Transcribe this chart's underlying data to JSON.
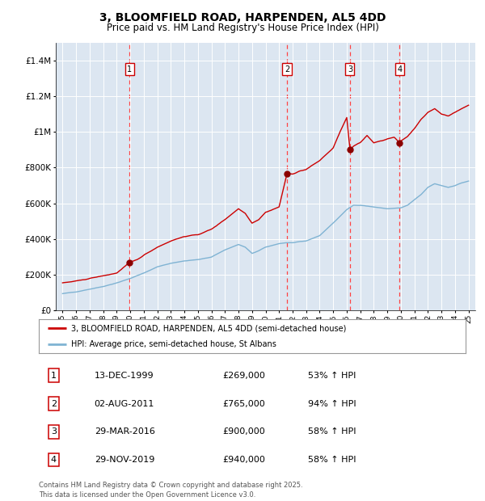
{
  "title": "3, BLOOMFIELD ROAD, HARPENDEN, AL5 4DD",
  "subtitle": "Price paid vs. HM Land Registry's House Price Index (HPI)",
  "title_fontsize": 10,
  "subtitle_fontsize": 8.5,
  "bg_color": "#dce6f1",
  "fig_bg_color": "#ffffff",
  "red_line_color": "#cc0000",
  "blue_line_color": "#7fb3d3",
  "sale_marker_color": "#8b0000",
  "vline_color": "#ff4444",
  "legend_line1": "3, BLOOMFIELD ROAD, HARPENDEN, AL5 4DD (semi-detached house)",
  "legend_line2": "HPI: Average price, semi-detached house, St Albans",
  "footer": "Contains HM Land Registry data © Crown copyright and database right 2025.\nThis data is licensed under the Open Government Licence v3.0.",
  "sales": [
    {
      "num": 1,
      "date_str": "13-DEC-1999",
      "price": 269000,
      "pct": "53%",
      "year": 1999.96
    },
    {
      "num": 2,
      "date_str": "02-AUG-2011",
      "price": 765000,
      "pct": "94%",
      "year": 2011.58
    },
    {
      "num": 3,
      "date_str": "29-MAR-2016",
      "price": 900000,
      "pct": "58%",
      "year": 2016.24
    },
    {
      "num": 4,
      "date_str": "29-NOV-2019",
      "price": 940000,
      "pct": "58%",
      "year": 2019.91
    }
  ],
  "ylim": [
    0,
    1500000
  ],
  "xlim": [
    1994.5,
    2025.5
  ],
  "yticks": [
    0,
    200000,
    400000,
    600000,
    800000,
    1000000,
    1200000,
    1400000
  ],
  "ytick_labels": [
    "£0",
    "£200K",
    "£400K",
    "£600K",
    "£800K",
    "£1M",
    "£1.2M",
    "£1.4M"
  ],
  "hpi_waypoints": {
    "1995.0": 95000,
    "1996.0": 105000,
    "1997.0": 120000,
    "1998.0": 135000,
    "1999.0": 155000,
    "2000.0": 180000,
    "2001.0": 210000,
    "2002.0": 245000,
    "2003.0": 265000,
    "2004.0": 278000,
    "2005.0": 285000,
    "2006.0": 300000,
    "2007.0": 340000,
    "2008.0": 370000,
    "2008.5": 355000,
    "2009.0": 320000,
    "2009.5": 335000,
    "2010.0": 355000,
    "2011.0": 375000,
    "2011.5": 380000,
    "2012.0": 380000,
    "2013.0": 390000,
    "2014.0": 420000,
    "2015.0": 490000,
    "2016.0": 565000,
    "2016.5": 590000,
    "2017.0": 590000,
    "2018.0": 580000,
    "2019.0": 570000,
    "2020.0": 575000,
    "2020.5": 590000,
    "2021.0": 620000,
    "2021.5": 650000,
    "2022.0": 690000,
    "2022.5": 710000,
    "2023.0": 700000,
    "2023.5": 690000,
    "2024.0": 700000,
    "2024.5": 715000,
    "2025.0": 725000
  },
  "red_waypoints": {
    "1995.0": 155000,
    "1996.0": 165000,
    "1997.0": 180000,
    "1998.0": 195000,
    "1999.0": 210000,
    "1999.96": 269000,
    "2000.5": 285000,
    "2001.0": 310000,
    "2002.0": 355000,
    "2003.0": 390000,
    "2004.0": 415000,
    "2005.0": 425000,
    "2006.0": 455000,
    "2007.0": 510000,
    "2007.5": 540000,
    "2008.0": 570000,
    "2008.5": 545000,
    "2009.0": 490000,
    "2009.5": 510000,
    "2010.0": 550000,
    "2011.0": 580000,
    "2011.58": 765000,
    "2012.0": 765000,
    "2012.5": 780000,
    "2013.0": 790000,
    "2014.0": 840000,
    "2015.0": 910000,
    "2015.5": 1000000,
    "2016.0": 1080000,
    "2016.24": 900000,
    "2016.5": 920000,
    "2017.0": 940000,
    "2017.5": 980000,
    "2018.0": 940000,
    "2018.5": 950000,
    "2019.0": 960000,
    "2019.5": 970000,
    "2019.91": 940000,
    "2020.0": 950000,
    "2020.5": 975000,
    "2021.0": 1020000,
    "2021.5": 1070000,
    "2022.0": 1110000,
    "2022.5": 1130000,
    "2023.0": 1100000,
    "2023.5": 1090000,
    "2024.0": 1110000,
    "2024.5": 1130000,
    "2025.0": 1150000
  }
}
